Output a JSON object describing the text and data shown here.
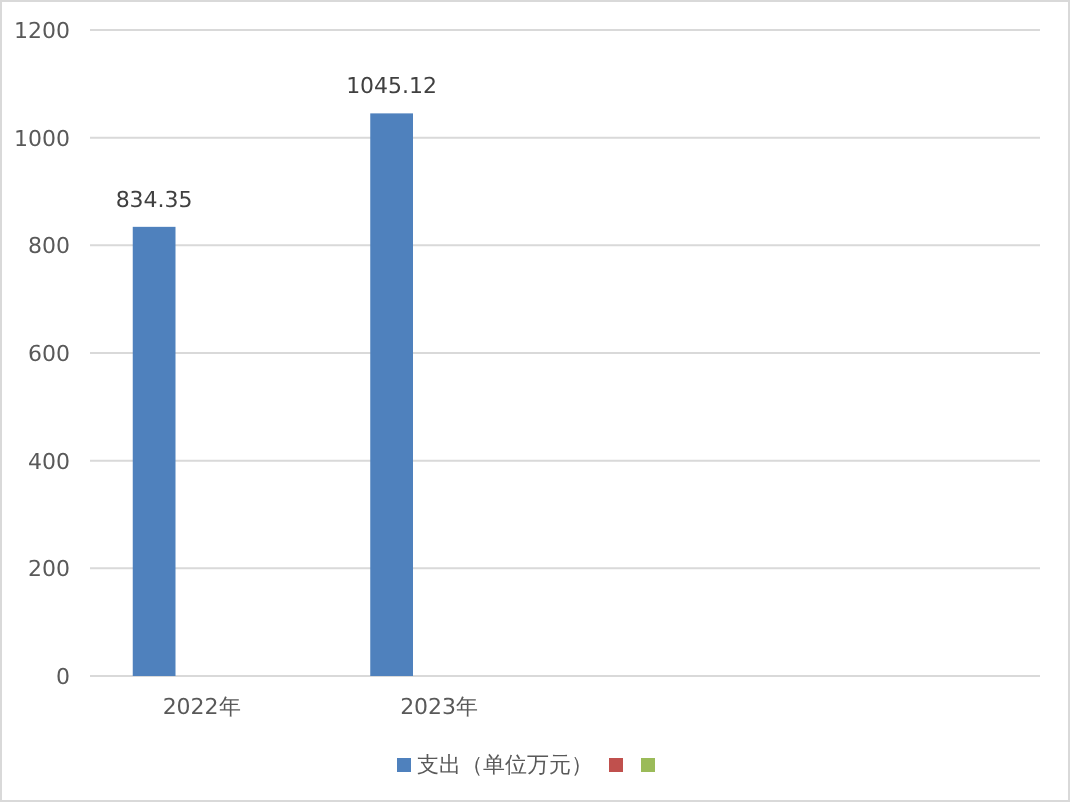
{
  "chart_data": {
    "type": "bar",
    "categories": [
      "2022年",
      "2023年",
      null,
      null
    ],
    "series": [
      {
        "name": "支出（单位万元）",
        "color": "#4f81bd",
        "values": [
          834.35,
          1045.12,
          null,
          null
        ]
      },
      {
        "color": "#c0504d",
        "values": [
          null,
          null,
          null,
          null
        ]
      },
      {
        "color": "#9bbb59",
        "values": [
          null,
          null,
          null,
          null
        ]
      }
    ],
    "ylim": [
      0,
      1200
    ],
    "yticks": [
      0,
      200,
      400,
      600,
      800,
      1000,
      1200
    ],
    "grid": "y",
    "legend": "bottom",
    "data_labels": true
  }
}
